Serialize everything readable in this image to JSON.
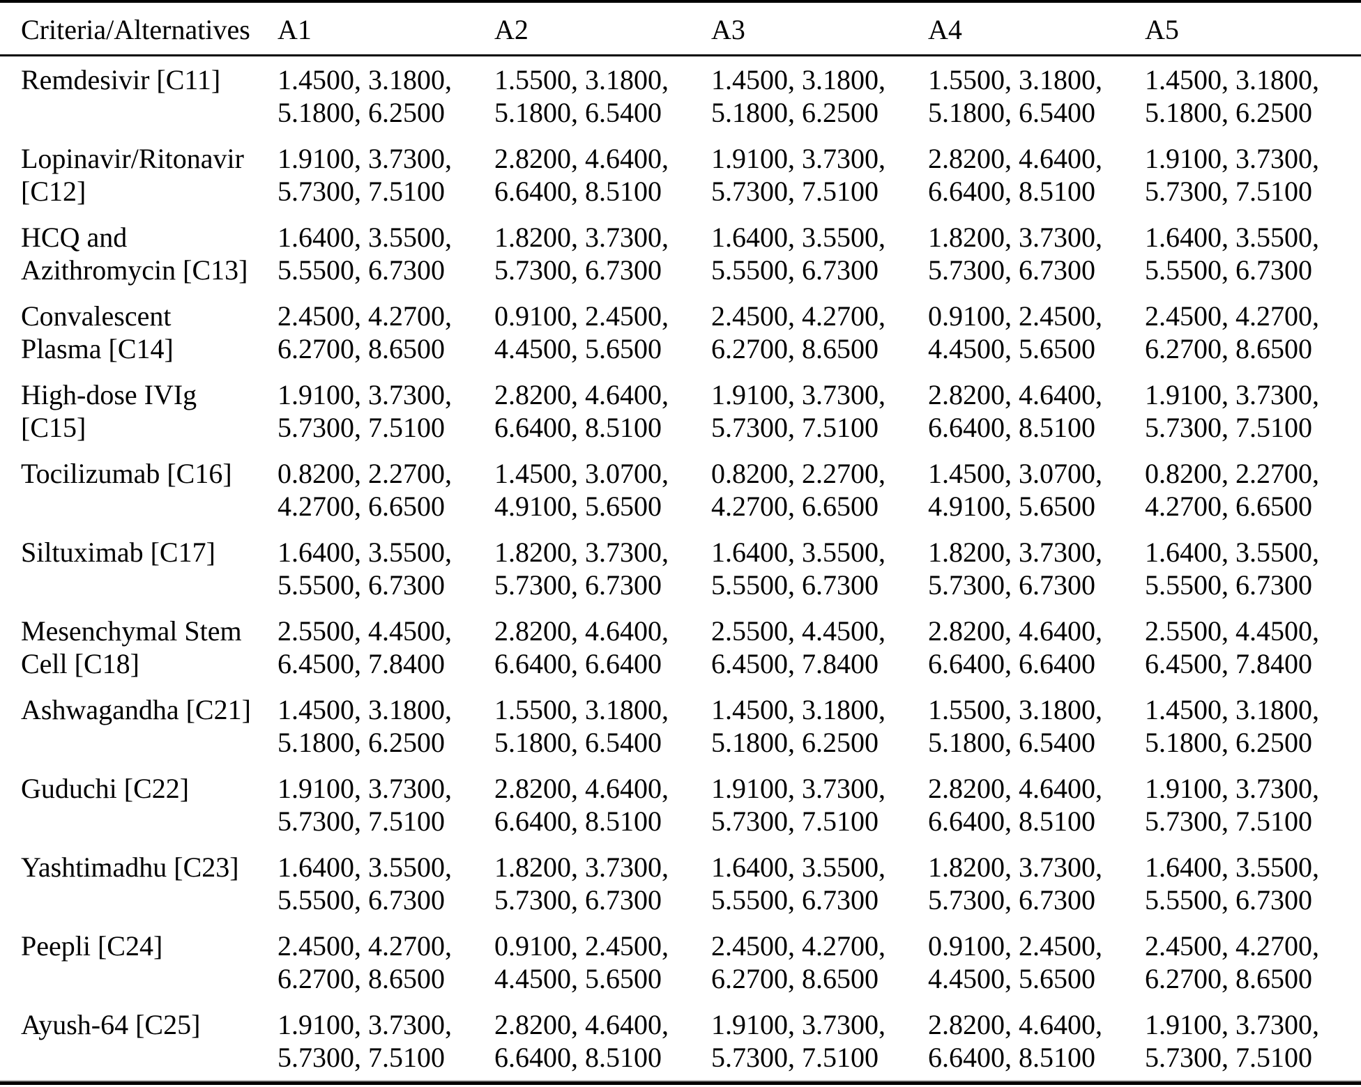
{
  "table": {
    "header": [
      "Criteria/Alternatives",
      "A1",
      "A2",
      "A3",
      "A4",
      "A5"
    ],
    "rows": [
      {
        "criterion_lines": [
          "Remdesivir [C11]"
        ],
        "cells": [
          [
            "1.4500",
            "3.1800",
            "5.1800",
            "6.2500"
          ],
          [
            "1.5500",
            "3.1800",
            "5.1800",
            "6.5400"
          ],
          [
            "1.4500",
            "3.1800",
            "5.1800",
            "6.2500"
          ],
          [
            "1.5500",
            "3.1800",
            "5.1800",
            "6.5400"
          ],
          [
            "1.4500",
            "3.1800",
            "5.1800",
            "6.2500"
          ]
        ]
      },
      {
        "criterion_lines": [
          "Lopinavir/Ritonavir",
          "[C12]"
        ],
        "cells": [
          [
            "1.9100",
            "3.7300",
            "5.7300",
            "7.5100"
          ],
          [
            "2.8200",
            "4.6400",
            "6.6400",
            "8.5100"
          ],
          [
            "1.9100",
            "3.7300",
            "5.7300",
            "7.5100"
          ],
          [
            "2.8200",
            "4.6400",
            "6.6400",
            "8.5100"
          ],
          [
            "1.9100",
            "3.7300",
            "5.7300",
            "7.5100"
          ]
        ]
      },
      {
        "criterion_lines": [
          "HCQ and",
          "Azithromycin [C13]"
        ],
        "cells": [
          [
            "1.6400",
            "3.5500",
            "5.5500",
            "6.7300"
          ],
          [
            "1.8200",
            "3.7300",
            "5.7300",
            "6.7300"
          ],
          [
            "1.6400",
            "3.5500",
            "5.5500",
            "6.7300"
          ],
          [
            "1.8200",
            "3.7300",
            "5.7300",
            "6.7300"
          ],
          [
            "1.6400",
            "3.5500",
            "5.5500",
            "6.7300"
          ]
        ]
      },
      {
        "criterion_lines": [
          "Convalescent",
          "Plasma [C14]"
        ],
        "cells": [
          [
            "2.4500",
            "4.2700",
            "6.2700",
            "8.6500"
          ],
          [
            "0.9100",
            "2.4500",
            "4.4500",
            "5.6500"
          ],
          [
            "2.4500",
            "4.2700",
            "6.2700",
            "8.6500"
          ],
          [
            "0.9100",
            "2.4500",
            "4.4500",
            "5.6500"
          ],
          [
            "2.4500",
            "4.2700",
            "6.2700",
            "8.6500"
          ]
        ]
      },
      {
        "criterion_lines": [
          "High-dose IVIg",
          "[C15]"
        ],
        "cells": [
          [
            "1.9100",
            "3.7300",
            "5.7300",
            "7.5100"
          ],
          [
            "2.8200",
            "4.6400",
            "6.6400",
            "8.5100"
          ],
          [
            "1.9100",
            "3.7300",
            "5.7300",
            "7.5100"
          ],
          [
            "2.8200",
            "4.6400",
            "6.6400",
            "8.5100"
          ],
          [
            "1.9100",
            "3.7300",
            "5.7300",
            "7.5100"
          ]
        ]
      },
      {
        "criterion_lines": [
          "Tocilizumab [C16]"
        ],
        "cells": [
          [
            "0.8200",
            "2.2700",
            "4.2700",
            "6.6500"
          ],
          [
            "1.4500",
            "3.0700",
            "4.9100",
            "5.6500"
          ],
          [
            "0.8200",
            "2.2700",
            "4.2700",
            "6.6500"
          ],
          [
            "1.4500",
            "3.0700",
            "4.9100",
            "5.6500"
          ],
          [
            "0.8200",
            "2.2700",
            "4.2700",
            "6.6500"
          ]
        ]
      },
      {
        "criterion_lines": [
          "Siltuximab [C17]"
        ],
        "cells": [
          [
            "1.6400",
            "3.5500",
            "5.5500",
            "6.7300"
          ],
          [
            "1.8200",
            "3.7300",
            "5.7300",
            "6.7300"
          ],
          [
            "1.6400",
            "3.5500",
            "5.5500",
            "6.7300"
          ],
          [
            "1.8200",
            "3.7300",
            "5.7300",
            "6.7300"
          ],
          [
            "1.6400",
            "3.5500",
            "5.5500",
            "6.7300"
          ]
        ]
      },
      {
        "criterion_lines": [
          "Mesenchymal Stem",
          "Cell [C18]"
        ],
        "cells": [
          [
            "2.5500",
            "4.4500",
            "6.4500",
            "7.8400"
          ],
          [
            "2.8200",
            "4.6400",
            "6.6400",
            "6.6400"
          ],
          [
            "2.5500",
            "4.4500",
            "6.4500",
            "7.8400"
          ],
          [
            "2.8200",
            "4.6400",
            "6.6400",
            "6.6400"
          ],
          [
            "2.5500",
            "4.4500",
            "6.4500",
            "7.8400"
          ]
        ]
      },
      {
        "criterion_lines": [
          "Ashwagandha [C21]"
        ],
        "cells": [
          [
            "1.4500",
            "3.1800",
            "5.1800",
            "6.2500"
          ],
          [
            "1.5500",
            "3.1800",
            "5.1800",
            "6.5400"
          ],
          [
            "1.4500",
            "3.1800",
            "5.1800",
            "6.2500"
          ],
          [
            "1.5500",
            "3.1800",
            "5.1800",
            "6.5400"
          ],
          [
            "1.4500",
            "3.1800",
            "5.1800",
            "6.2500"
          ]
        ]
      },
      {
        "criterion_lines": [
          "Guduchi [C22]"
        ],
        "cells": [
          [
            "1.9100",
            "3.7300",
            "5.7300",
            "7.5100"
          ],
          [
            "2.8200",
            "4.6400",
            "6.6400",
            "8.5100"
          ],
          [
            "1.9100",
            "3.7300",
            "5.7300",
            "7.5100"
          ],
          [
            "2.8200",
            "4.6400",
            "6.6400",
            "8.5100"
          ],
          [
            "1.9100",
            "3.7300",
            "5.7300",
            "7.5100"
          ]
        ]
      },
      {
        "criterion_lines": [
          "Yashtimadhu [C23]"
        ],
        "cells": [
          [
            "1.6400",
            "3.5500",
            "5.5500",
            "6.7300"
          ],
          [
            "1.8200",
            "3.7300",
            "5.7300",
            "6.7300"
          ],
          [
            "1.6400",
            "3.5500",
            "5.5500",
            "6.7300"
          ],
          [
            "1.8200",
            "3.7300",
            "5.7300",
            "6.7300"
          ],
          [
            "1.6400",
            "3.5500",
            "5.5500",
            "6.7300"
          ]
        ]
      },
      {
        "criterion_lines": [
          "Peepli [C24]"
        ],
        "cells": [
          [
            "2.4500",
            "4.2700",
            "6.2700",
            "8.6500"
          ],
          [
            "0.9100",
            "2.4500",
            "4.4500",
            "5.6500"
          ],
          [
            "2.4500",
            "4.2700",
            "6.2700",
            "8.6500"
          ],
          [
            "0.9100",
            "2.4500",
            "4.4500",
            "5.6500"
          ],
          [
            "2.4500",
            "4.2700",
            "6.2700",
            "8.6500"
          ]
        ]
      },
      {
        "criterion_lines": [
          "Ayush-64 [C25]"
        ],
        "cells": [
          [
            "1.9100",
            "3.7300",
            "5.7300",
            "7.5100"
          ],
          [
            "2.8200",
            "4.6400",
            "6.6400",
            "8.5100"
          ],
          [
            "1.9100",
            "3.7300",
            "5.7300",
            "7.5100"
          ],
          [
            "2.8200",
            "4.6400",
            "6.6400",
            "8.5100"
          ],
          [
            "1.9100",
            "3.7300",
            "5.7300",
            "7.5100"
          ]
        ]
      }
    ]
  }
}
